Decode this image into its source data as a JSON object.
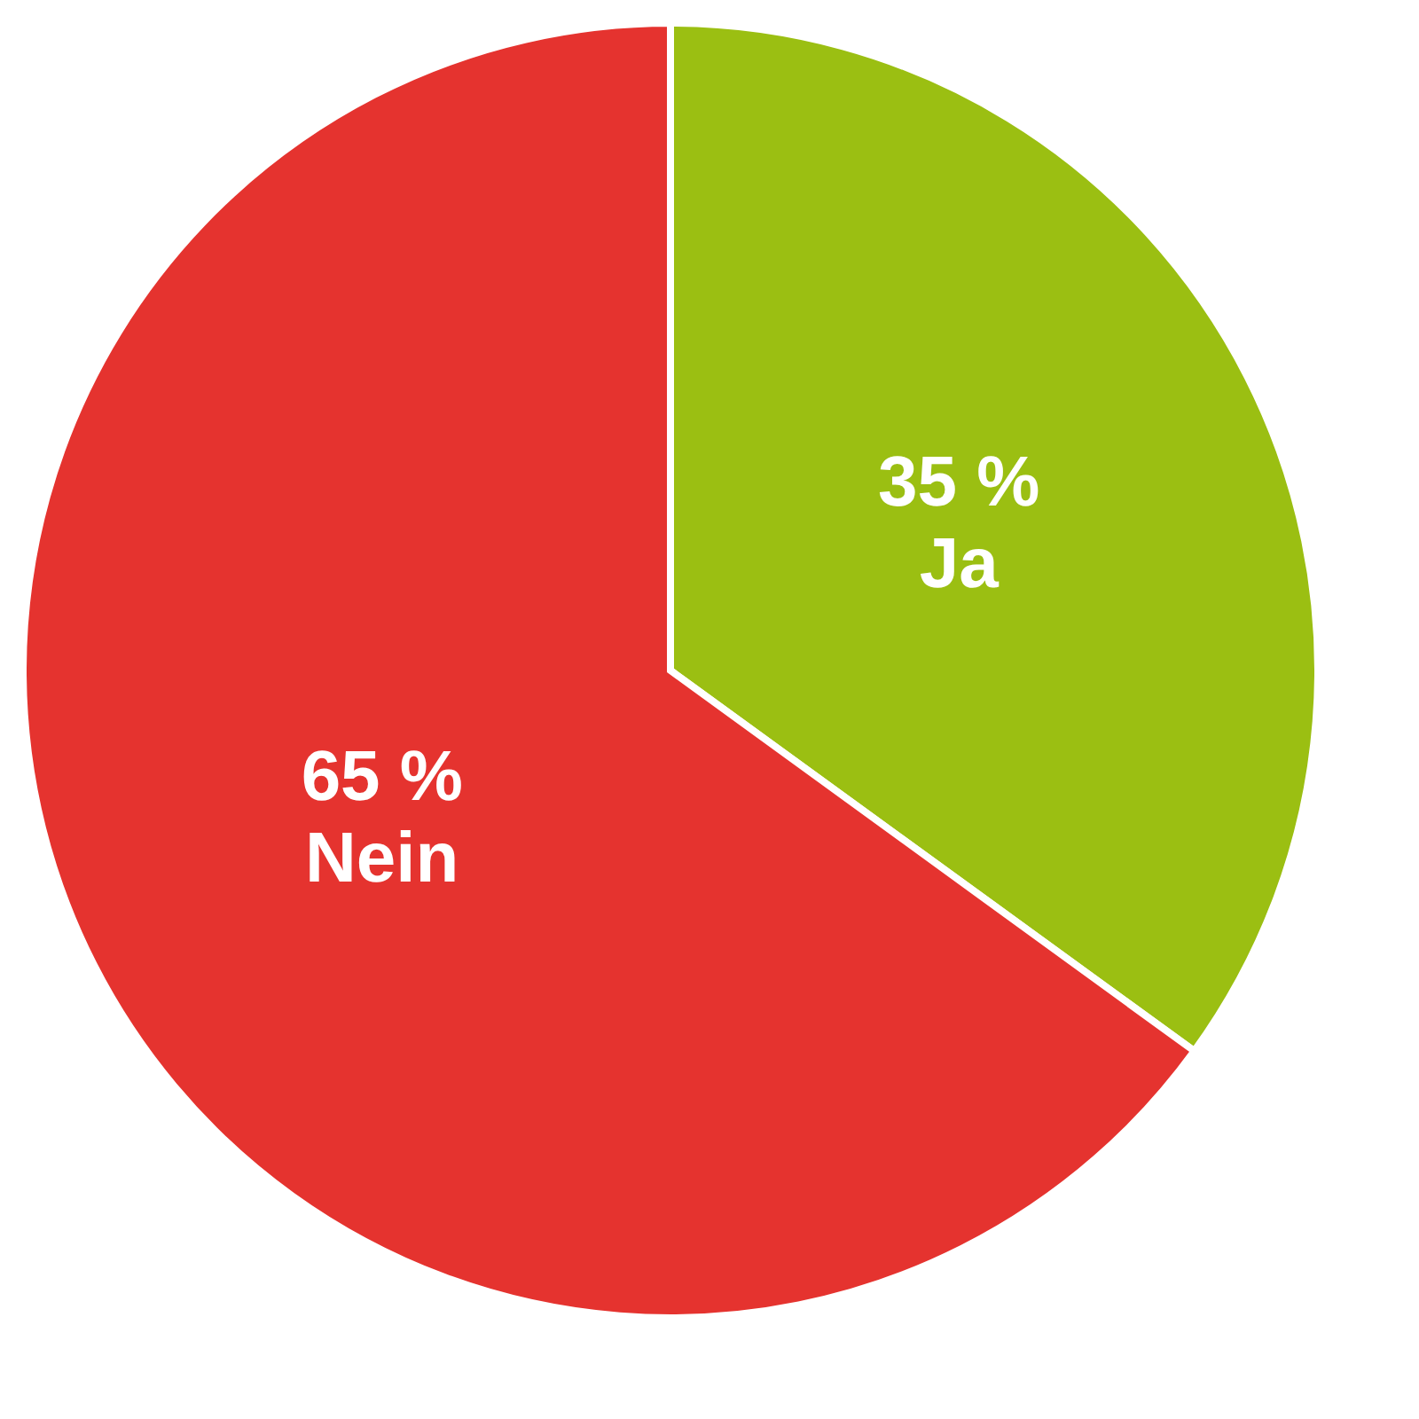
{
  "chart_data": {
    "type": "pie",
    "categories": [
      "Ja",
      "Nein"
    ],
    "values": [
      35,
      65
    ],
    "colors": [
      "#9bbf12",
      "#e5332f"
    ],
    "value_labels": [
      "35 %",
      "65 %"
    ],
    "legend": false
  }
}
